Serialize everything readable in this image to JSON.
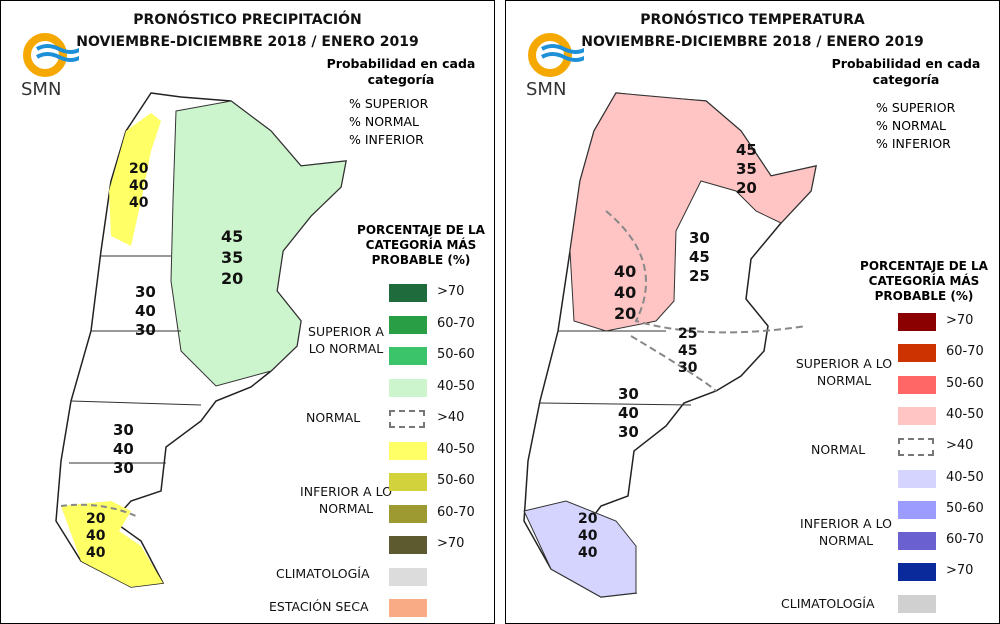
{
  "panels": [
    {
      "title_line1": "PRONÓSTICO PRECIPITACIÓN",
      "title_line2": "NOVIEMBRE-DICIEMBRE 2018 / ENERO 2019",
      "logo_text": "SMN",
      "prob_title": "Probabilidad en cada categoría",
      "cats": [
        "% SUPERIOR",
        "% NORMAL",
        "% INFERIOR"
      ],
      "pct_title": "PORCENTAJE DE LA CATEGORÍA MÁS PROBABLE (%)",
      "groups": {
        "superior": "SUPERIOR A LO NORMAL",
        "normal": "NORMAL",
        "inferior": "INFERIOR A LO NORMAL",
        "clim": "CLIMATOLOGÍA",
        "seca": "ESTACIÓN SECA"
      },
      "superior": [
        {
          "label": ">70",
          "color": "#1f6b3b"
        },
        {
          "label": "60-70",
          "color": "#2a9e45"
        },
        {
          "label": "50-60",
          "color": "#3cc46a"
        },
        {
          "label": "40-50",
          "color": "#cdf5cd"
        }
      ],
      "normal": {
        "label": ">40"
      },
      "inferior": [
        {
          "label": "40-50",
          "color": "#ffff66"
        },
        {
          "label": "50-60",
          "color": "#d2d23c"
        },
        {
          "label": "60-70",
          "color": "#9c9a30"
        },
        {
          "label": ">70",
          "color": "#5e5a30"
        }
      ],
      "clim_color": "#dcdcdc",
      "seca_color": "#f8ab85",
      "regions": [
        [
          "20",
          "40",
          "40"
        ],
        [
          "45",
          "35",
          "20"
        ],
        [
          "30",
          "40",
          "30"
        ],
        [
          "30",
          "40",
          "30"
        ],
        [
          "20",
          "40",
          "40"
        ]
      ]
    },
    {
      "title_line1": "PRONÓSTICO TEMPERATURA",
      "title_line2": "NOVIEMBRE-DICIEMBRE 2018 / ENERO 2019",
      "logo_text": "SMN",
      "prob_title": "Probabilidad en cada categoría",
      "cats": [
        "% SUPERIOR",
        "% NORMAL",
        "% INFERIOR"
      ],
      "pct_title": "PORCENTAJE DE LA CATEGORÍA MÁS PROBABLE (%)",
      "groups": {
        "superior": "SUPERIOR A LO NORMAL",
        "normal": "NORMAL",
        "inferior": "INFERIOR A LO NORMAL",
        "clim": "CLIMATOLOGÍA"
      },
      "superior": [
        {
          "label": ">70",
          "color": "#8b0000"
        },
        {
          "label": "60-70",
          "color": "#cc3300"
        },
        {
          "label": "50-60",
          "color": "#ff6666"
        },
        {
          "label": "40-50",
          "color": "#ffc4c4"
        }
      ],
      "normal": {
        "label": ">40"
      },
      "inferior": [
        {
          "label": "40-50",
          "color": "#d4d4ff"
        },
        {
          "label": "50-60",
          "color": "#9c9cff"
        },
        {
          "label": "60-70",
          "color": "#6a60d0"
        },
        {
          "label": ">70",
          "color": "#0a2a9c"
        }
      ],
      "clim_color": "#d0d0d0",
      "regions": [
        [
          "45",
          "35",
          "20"
        ],
        [
          "30",
          "45",
          "25"
        ],
        [
          "40",
          "40",
          "20"
        ],
        [
          "25",
          "45",
          "30"
        ],
        [
          "30",
          "40",
          "30"
        ],
        [
          "20",
          "40",
          "40"
        ]
      ]
    }
  ]
}
